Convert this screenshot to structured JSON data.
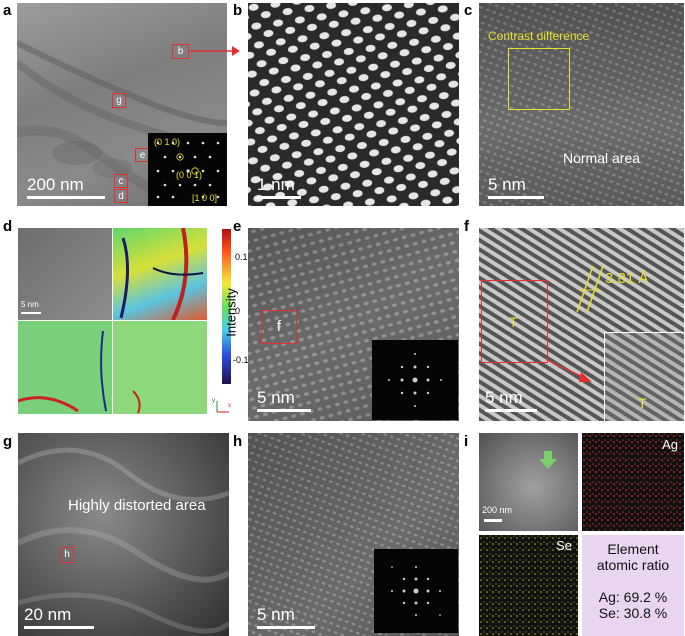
{
  "panel_labels": [
    "a",
    "b",
    "c",
    "d",
    "e",
    "f",
    "g",
    "h",
    "i"
  ],
  "panel_a": {
    "scale": "200 nm",
    "boxes": [
      "b",
      "g",
      "e",
      "c",
      "d"
    ],
    "fft": {
      "spot1": "(0 1 0)",
      "spot2": "(0 0 1)",
      "zone": "[1 0 0]"
    }
  },
  "panel_b": {
    "scale": "1 nm"
  },
  "panel_c": {
    "box_label": "Contrast difference",
    "area_label": "Normal area",
    "scale": "5 nm"
  },
  "panel_d": {
    "scale": "5 nm",
    "colorbar": {
      "label": "Intensity",
      "ticks": [
        "0.1",
        "0",
        "-0.1"
      ]
    },
    "axes": {
      "y": "y",
      "x": "x"
    }
  },
  "panel_e": {
    "box": "f",
    "scale": "5 nm"
  },
  "panel_f": {
    "spacing": "3.81 Å",
    "marker1": "T",
    "marker2": "T",
    "scale": "5 nm"
  },
  "panel_g": {
    "area_label": "Highly distorted area",
    "box": "h",
    "scale": "20 nm"
  },
  "panel_h": {
    "scale": "5 nm"
  },
  "panel_i": {
    "scale": "200 nm",
    "map1": "Ag",
    "map2": "Se",
    "ratio_title_1": "Element",
    "ratio_title_2": "atomic ratio",
    "ratio_ag": "Ag: 69.2 %",
    "ratio_se": "Se: 30.8 %"
  }
}
